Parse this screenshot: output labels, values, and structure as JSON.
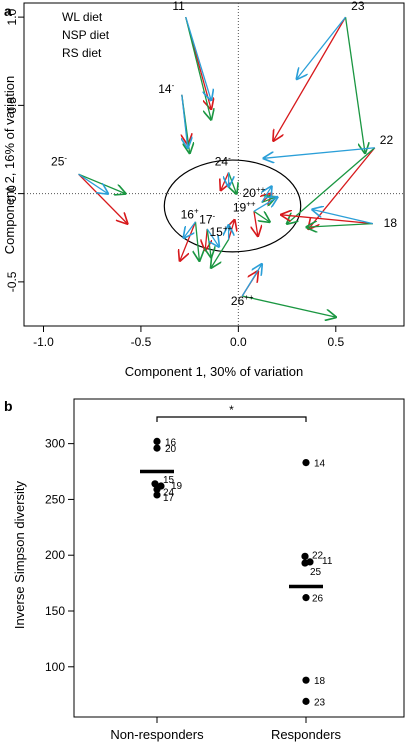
{
  "chart_data": [
    {
      "panel": "a",
      "type": "scatter",
      "xlabel": "Component 1, 30% of variation",
      "ylabel": "Component 2, 16% of variation",
      "xlim": [
        -1.1,
        0.85
      ],
      "ylim": [
        -0.75,
        1.08
      ],
      "xticks": [
        -1.0,
        -0.5,
        0.0,
        0.5
      ],
      "yticks": [
        -0.5,
        0.0,
        0.5,
        1.0
      ],
      "xtick_labels": [
        "-1.0",
        "-0.5",
        "0.0",
        "0.5"
      ],
      "ytick_labels": [
        "-0.5",
        "0.0",
        "0.5",
        "1.0"
      ],
      "legend": {
        "placement": "top-left",
        "entries": [
          {
            "label": "WL diet",
            "color": "#d7191c"
          },
          {
            "label": "NSP diet",
            "color": "#1a9641"
          },
          {
            "label": "RS diet",
            "color": "#2b9fd8"
          }
        ]
      },
      "ellipse": {
        "cx": -0.03,
        "cy": -0.07,
        "rx": 0.35,
        "ry": 0.26
      },
      "subjects": [
        {
          "id": "11",
          "suffix": "-",
          "label_pos": [
            -0.3,
            1.04
          ],
          "origin": [
            -0.27,
            1.0
          ],
          "arrows": {
            "WL": [
              -0.14,
              0.48
            ],
            "NSP": [
              -0.14,
              0.42
            ],
            "RS": [
              -0.14,
              0.53
            ]
          }
        },
        {
          "id": "14",
          "suffix": "-",
          "label_pos": [
            -0.37,
            0.57
          ],
          "origin": [
            -0.29,
            0.56
          ],
          "arrows": {
            "WL": [
              -0.26,
              0.28
            ],
            "NSP": [
              -0.25,
              0.23
            ],
            "RS": [
              -0.26,
              0.26
            ]
          }
        },
        {
          "id": "23",
          "suffix": "-",
          "label_pos": [
            0.62,
            1.04
          ],
          "origin": [
            0.55,
            1.0
          ],
          "arrows": {
            "WL": [
              0.18,
              0.3
            ],
            "NSP": [
              0.65,
              0.23
            ],
            "RS": [
              0.3,
              0.65
            ]
          }
        },
        {
          "id": "22",
          "suffix": "",
          "label_pos": [
            0.76,
            0.28
          ],
          "origin": [
            0.7,
            0.26
          ],
          "arrows": {
            "WL": [
              0.36,
              -0.2
            ],
            "NSP": [
              0.25,
              -0.17
            ],
            "RS": [
              0.13,
              0.2
            ]
          }
        },
        {
          "id": "18",
          "suffix": "",
          "label_pos": [
            0.78,
            -0.19
          ],
          "origin": [
            0.69,
            -0.17
          ],
          "arrows": {
            "WL": [
              0.22,
              -0.12
            ],
            "NSP": [
              0.35,
              -0.19
            ],
            "RS": [
              0.38,
              -0.09
            ]
          }
        },
        {
          "id": "25",
          "suffix": "-",
          "label_pos": [
            -0.92,
            0.16
          ],
          "origin": [
            -0.82,
            0.11
          ],
          "arrows": {
            "WL": [
              -0.57,
              -0.17
            ],
            "NSP": [
              -0.58,
              0.0
            ],
            "RS": [
              -0.67,
              0.0
            ]
          }
        },
        {
          "id": "24",
          "suffix": "-",
          "label_pos": [
            -0.08,
            0.16
          ],
          "origin": [
            -0.05,
            0.12
          ],
          "arrows": {
            "WL": [
              -0.09,
              0.02
            ],
            "NSP": [
              -0.01,
              0.0
            ],
            "RS": [
              -0.05,
              0.04
            ]
          }
        },
        {
          "id": "20",
          "suffix": "++",
          "label_pos": [
            0.08,
            -0.02
          ],
          "origin": [
            0.12,
            -0.05
          ],
          "arrows": {
            "WL": [
              0.17,
              0.0
            ],
            "NSP": [
              0.19,
              -0.02
            ],
            "RS": [
              0.17,
              0.04
            ]
          }
        },
        {
          "id": "19",
          "suffix": "++",
          "label_pos": [
            0.03,
            -0.1
          ],
          "origin": [
            0.08,
            -0.1
          ],
          "arrows": {
            "WL": [
              0.1,
              -0.24
            ],
            "NSP": [
              0.16,
              -0.16
            ],
            "RS": [
              0.2,
              -0.02
            ]
          }
        },
        {
          "id": "16",
          "suffix": "+",
          "label_pos": [
            -0.25,
            -0.14
          ],
          "origin": [
            -0.22,
            -0.16
          ],
          "arrows": {
            "WL": [
              -0.3,
              -0.38
            ],
            "NSP": [
              -0.2,
              -0.38
            ],
            "RS": [
              -0.28,
              -0.25
            ]
          }
        },
        {
          "id": "17",
          "suffix": "-",
          "label_pos": [
            -0.16,
            -0.17
          ],
          "origin": [
            -0.16,
            -0.2
          ],
          "arrows": {
            "WL": [
              -0.17,
              -0.32
            ],
            "NSP": [
              -0.14,
              -0.36
            ],
            "RS": [
              -0.1,
              -0.3
            ]
          }
        },
        {
          "id": "15",
          "suffix": "++",
          "label_pos": [
            -0.09,
            -0.24
          ],
          "origin": [
            -0.05,
            -0.26
          ],
          "arrows": {
            "WL": [
              -0.02,
              -0.15
            ],
            "NSP": [
              -0.14,
              -0.42
            ],
            "RS": [
              -0.05,
              -0.18
            ]
          }
        },
        {
          "id": "26",
          "suffix": "++",
          "label_pos": [
            0.02,
            -0.63
          ],
          "origin": [
            0.02,
            -0.58
          ],
          "arrows": {
            "WL": [
              0.1,
              -0.44
            ],
            "NSP": [
              0.5,
              -0.7
            ],
            "RS": [
              0.12,
              -0.4
            ]
          }
        }
      ]
    },
    {
      "panel": "b",
      "type": "scatter",
      "ylabel": "Inverse Simpson diversity",
      "ylim": [
        55,
        340
      ],
      "yticks": [
        100,
        150,
        200,
        250,
        300
      ],
      "ytick_labels": [
        "100",
        "150",
        "200",
        "250",
        "300"
      ],
      "categories": [
        "Non-responders",
        "Responders"
      ],
      "significance": "*",
      "groups": [
        {
          "name": "Non-responders",
          "mean": 275,
          "points": [
            {
              "id": "16",
              "value": 302
            },
            {
              "id": "20",
              "value": 296
            },
            {
              "id": "15",
              "value": 264
            },
            {
              "id": "19",
              "value": 262
            },
            {
              "id": "24",
              "value": 259
            },
            {
              "id": "17",
              "value": 254
            }
          ]
        },
        {
          "name": "Responders",
          "mean": 172,
          "points": [
            {
              "id": "14",
              "value": 283
            },
            {
              "id": "22",
              "value": 199
            },
            {
              "id": "11",
              "value": 194
            },
            {
              "id": "25",
              "value": 193
            },
            {
              "id": "26",
              "value": 162
            },
            {
              "id": "18",
              "value": 88
            },
            {
              "id": "23",
              "value": 69
            }
          ]
        }
      ]
    }
  ],
  "panel_labels": {
    "a": "a",
    "b": "b"
  }
}
